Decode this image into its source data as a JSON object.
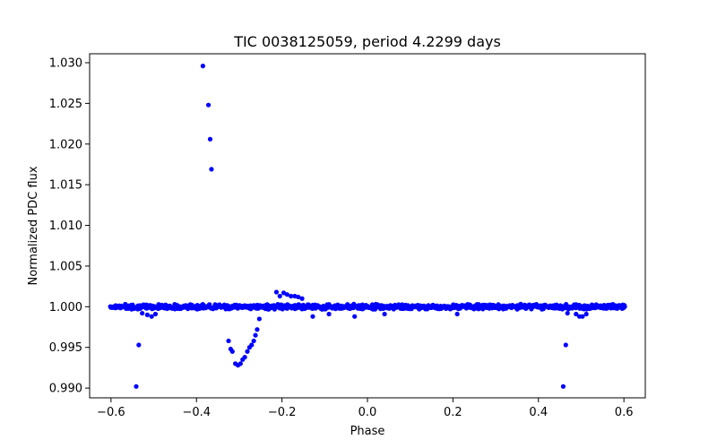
{
  "chart_data": {
    "type": "scatter",
    "title": "TIC 0038125059, period 4.2299 days",
    "xlabel": "Phase",
    "ylabel": "Normalized PDC flux",
    "xlim": [
      -0.65,
      0.65
    ],
    "ylim": [
      0.9888,
      1.0311
    ],
    "xticks": [
      -0.6,
      -0.4,
      -0.2,
      0.0,
      0.2,
      0.4,
      0.6
    ],
    "xtick_labels": [
      "−0.6",
      "−0.4",
      "−0.2",
      "0.0",
      "0.2",
      "0.4",
      "0.6"
    ],
    "yticks": [
      0.99,
      0.995,
      1.0,
      1.005,
      1.01,
      1.015,
      1.02,
      1.025,
      1.03
    ],
    "ytick_labels": [
      "0.990",
      "0.995",
      "1.000",
      "1.005",
      "1.010",
      "1.015",
      "1.020",
      "1.025",
      "1.030"
    ],
    "marker_color": "#0000ff",
    "baseline": {
      "x_start": -0.6,
      "x_end": 0.6,
      "x_step": 0.004,
      "y_center": 1.0,
      "y_scatter": 0.00035
    },
    "series": [
      {
        "name": "flux",
        "x": [
          -0.385,
          -0.372,
          -0.368,
          -0.365,
          -0.541,
          -0.535,
          -0.527,
          -0.515,
          -0.505,
          -0.496,
          0.458,
          0.464,
          0.468,
          0.488,
          0.496,
          0.503,
          0.512,
          -0.325,
          -0.32,
          -0.316,
          -0.309,
          -0.303,
          -0.297,
          -0.292,
          -0.287,
          -0.281,
          -0.276,
          -0.271,
          -0.266,
          -0.262,
          -0.258,
          -0.253,
          -0.213,
          -0.205,
          -0.196,
          -0.188,
          -0.179,
          -0.17,
          -0.162,
          -0.153,
          -0.128,
          -0.09,
          -0.03,
          0.04,
          0.21
        ],
        "y": [
          1.0296,
          1.0248,
          1.0206,
          1.0169,
          0.9902,
          0.9953,
          0.9992,
          0.999,
          0.9988,
          0.9991,
          0.9902,
          0.9953,
          0.9992,
          0.9991,
          0.9988,
          0.9988,
          0.9991,
          0.9958,
          0.9948,
          0.9945,
          0.993,
          0.9928,
          0.993,
          0.9935,
          0.9938,
          0.9945,
          0.995,
          0.9953,
          0.9958,
          0.9965,
          0.9972,
          0.9985,
          1.0018,
          1.0013,
          1.0017,
          1.0015,
          1.0013,
          1.0013,
          1.0012,
          1.001,
          0.9988,
          0.9991,
          0.9988,
          0.9991,
          0.9991
        ]
      }
    ]
  }
}
